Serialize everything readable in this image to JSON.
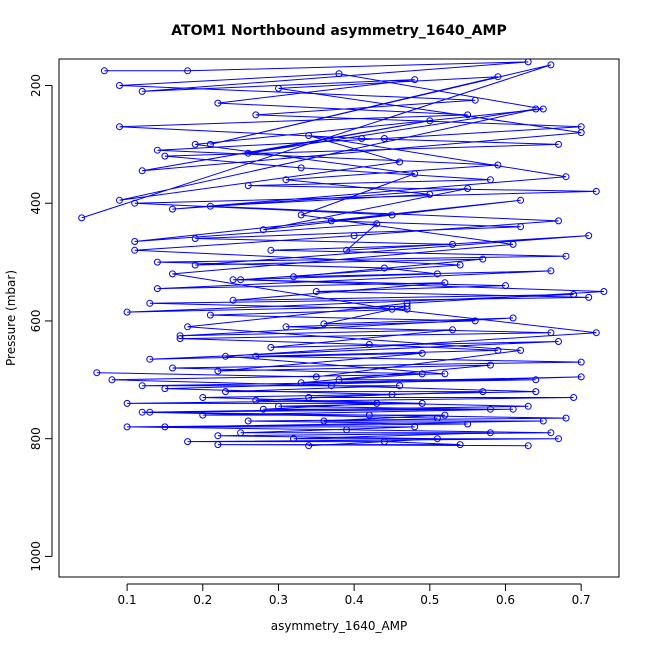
{
  "chart_data": {
    "type": "line",
    "title": "ATOM1 Northbound asymmetry_1640_AMP",
    "xlabel": "asymmetry_1640_AMP",
    "ylabel": "Pressure (mbar)",
    "xlim": [
      0.01,
      0.75
    ],
    "ylim": [
      1035,
      155
    ],
    "y_axis_inverted": true,
    "xticks": [
      0.1,
      0.2,
      0.3,
      0.4,
      0.5,
      0.6,
      0.7
    ],
    "yticks": [
      200,
      400,
      600,
      800,
      1000
    ],
    "grid": false,
    "legend": "none",
    "colors": {
      "series": "#0000ff",
      "frame": "#000000"
    },
    "marker": "open-circle",
    "series": [
      {
        "x": [
          0.07,
          0.18,
          0.63,
          0.12,
          0.48,
          0.22,
          0.55,
          0.09,
          0.41,
          0.67,
          0.15,
          0.33,
          0.58,
          0.26,
          0.72,
          0.11,
          0.45,
          0.37,
          0.62,
          0.19,
          0.53,
          0.29,
          0.68,
          0.14,
          0.44,
          0.51,
          0.24,
          0.6,
          0.35,
          0.71,
          0.13,
          0.47,
          0.21,
          0.56,
          0.31,
          0.66,
          0.17,
          0.42,
          0.59,
          0.27,
          0.7,
          0.16,
          0.49,
          0.38,
          0.64,
          0.12,
          0.46,
          0.23,
          0.57,
          0.34,
          0.69,
          0.1,
          0.43,
          0.28,
          0.61,
          0.2,
          0.52,
          0.36,
          0.65,
          0.15,
          0.48,
          0.25,
          0.58,
          0.32,
          0.67,
          0.18,
          0.44,
          0.54,
          0.22,
          0.63
        ],
        "y": [
          175,
          175,
          160,
          210,
          190,
          230,
          250,
          270,
          290,
          300,
          320,
          340,
          360,
          370,
          380,
          400,
          420,
          430,
          440,
          460,
          470,
          480,
          490,
          500,
          510,
          520,
          530,
          540,
          550,
          560,
          570,
          580,
          590,
          600,
          610,
          620,
          630,
          640,
          650,
          660,
          670,
          680,
          690,
          700,
          700,
          710,
          710,
          720,
          720,
          730,
          730,
          740,
          740,
          750,
          750,
          760,
          760,
          770,
          770,
          780,
          780,
          790,
          790,
          800,
          800,
          805,
          805,
          810,
          810,
          812
        ]
      },
      {
        "x": [
          0.04,
          0.66,
          0.21,
          0.59,
          0.3,
          0.7,
          0.12,
          0.5,
          0.26,
          0.64,
          0.09,
          0.46,
          0.34,
          0.68,
          0.16,
          0.55,
          0.28,
          0.62,
          0.11,
          0.43,
          0.39,
          0.71,
          0.19,
          0.57,
          0.32,
          0.66,
          0.14,
          0.52,
          0.24,
          0.69,
          0.1,
          0.47,
          0.36,
          0.61,
          0.17,
          0.53,
          0.29,
          0.67,
          0.13,
          0.49,
          0.22,
          0.58,
          0.33,
          0.7,
          0.15,
          0.45,
          0.27,
          0.63,
          0.12,
          0.51
        ],
        "y": [
          425,
          165,
          300,
          185,
          205,
          280,
          345,
          260,
          315,
          240,
          395,
          330,
          285,
          355,
          410,
          375,
          445,
          395,
          465,
          435,
          480,
          455,
          505,
          495,
          525,
          515,
          545,
          535,
          565,
          555,
          585,
          575,
          605,
          595,
          625,
          615,
          645,
          635,
          665,
          655,
          685,
          675,
          705,
          695,
          715,
          725,
          735,
          745,
          755,
          765
        ]
      },
      {
        "x": [
          0.06,
          0.35,
          0.62,
          0.18,
          0.47,
          0.73,
          0.25,
          0.54,
          0.11,
          0.4,
          0.67,
          0.21,
          0.5,
          0.31,
          0.59,
          0.14,
          0.44,
          0.7,
          0.27,
          0.56,
          0.09,
          0.38,
          0.65,
          0.19,
          0.48,
          0.33,
          0.61,
          0.16,
          0.45,
          0.72,
          0.23,
          0.52,
          0.08,
          0.37,
          0.64,
          0.2,
          0.49,
          0.3,
          0.58,
          0.13,
          0.42,
          0.68,
          0.26,
          0.55,
          0.1,
          0.39,
          0.66,
          0.22,
          0.51,
          0.34
        ],
        "y": [
          688,
          695,
          650,
          610,
          570,
          550,
          530,
          505,
          480,
          455,
          430,
          405,
          385,
          360,
          335,
          310,
          290,
          270,
          250,
          225,
          200,
          180,
          240,
          300,
          350,
          420,
          470,
          520,
          580,
          620,
          660,
          690,
          700,
          710,
          720,
          730,
          740,
          745,
          750,
          755,
          760,
          765,
          770,
          775,
          780,
          785,
          790,
          795,
          800,
          812
        ]
      }
    ]
  }
}
